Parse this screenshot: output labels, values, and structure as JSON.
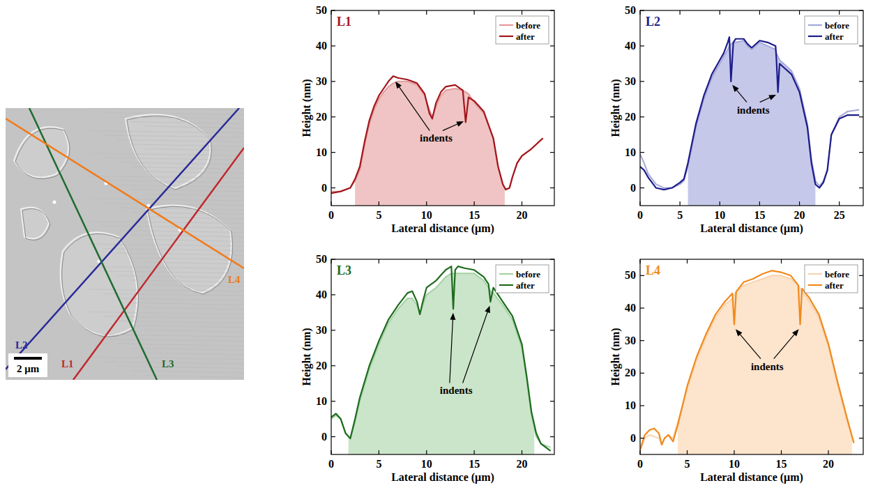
{
  "image": {
    "scale_bar": "2 μm",
    "lines": [
      {
        "label": "L1",
        "color": "#c0282d"
      },
      {
        "label": "L2",
        "color": "#2a2a9a"
      },
      {
        "label": "L3",
        "color": "#1f6b2e"
      },
      {
        "label": "L4",
        "color": "#f07a1a"
      }
    ]
  },
  "chart_data": [
    {
      "type": "line",
      "title": "L1",
      "x_label": "Lateral distance (μm)",
      "y_label": "Height (nm)",
      "xlim": [
        0,
        23.4
      ],
      "ylim": [
        -5,
        50
      ],
      "xticks": [
        0,
        5,
        10,
        15,
        20
      ],
      "yticks": [
        0,
        10,
        20,
        30,
        40,
        50
      ],
      "legend": "upper right",
      "shaded": [
        2.5,
        18.2
      ],
      "fill_color": "#f0c4c4",
      "x": [
        0,
        1,
        2,
        2.5,
        3,
        3.5,
        4,
        4.5,
        5,
        5.5,
        6,
        6.5,
        7,
        8,
        9,
        9.8,
        10.3,
        10.6,
        11,
        11.5,
        12,
        13,
        13.8,
        14.1,
        14.4,
        15,
        16,
        17,
        17.5,
        18,
        18.3,
        18.7,
        19,
        19.5,
        20,
        21,
        22.2
      ],
      "series": [
        {
          "name": "before",
          "color": "#e29a9a",
          "values": [
            -1,
            -1,
            0,
            2,
            5,
            12,
            18,
            22,
            25,
            27,
            28.5,
            29.5,
            30,
            30,
            29,
            26,
            22,
            20,
            23,
            26,
            27.5,
            28,
            27.5,
            27,
            26.5,
            24,
            21,
            14,
            6,
            1,
            -0.5,
            0,
            3,
            7,
            9,
            11,
            14
          ]
        },
        {
          "name": "after",
          "color": "#a3161c",
          "values": [
            -1.5,
            -1,
            0,
            2.5,
            6,
            13,
            19,
            23,
            26,
            28,
            30,
            31.5,
            31,
            30.5,
            29.5,
            26.5,
            21,
            19.5,
            24,
            27,
            28.5,
            29,
            27.5,
            18.5,
            25.5,
            24.5,
            21.5,
            14,
            6,
            1,
            -0.5,
            0,
            3,
            7,
            9,
            11,
            14
          ]
        }
      ],
      "annotations": [
        {
          "text": "indents",
          "x": 11,
          "y": 13,
          "arrows": [
            {
              "x": 6.6,
              "y": 30.5
            },
            {
              "x": 14.1,
              "y": 19
            }
          ]
        }
      ]
    },
    {
      "type": "line",
      "title": "L2",
      "x_label": "Lateral distance (μm)",
      "y_label": "Height (nm)",
      "xlim": [
        0,
        28
      ],
      "ylim": [
        -5,
        50
      ],
      "xticks": [
        0,
        5,
        10,
        15,
        20,
        25
      ],
      "yticks": [
        0,
        10,
        20,
        30,
        40,
        50
      ],
      "legend": "upper right",
      "shaded": [
        6,
        22
      ],
      "fill_color": "#c6c8ea",
      "x": [
        0,
        0.5,
        1,
        2,
        3,
        4,
        5,
        5.5,
        6,
        7,
        8,
        9,
        10,
        10.5,
        11,
        11.2,
        11.4,
        11.7,
        12,
        13,
        13.5,
        14,
        15,
        16,
        17,
        17.1,
        17.3,
        17.5,
        18,
        19,
        20,
        21,
        21.5,
        22,
        22.5,
        23,
        23.5,
        24,
        25,
        26,
        27.5
      ],
      "series": [
        {
          "name": "before",
          "color": "#a4a8d8",
          "values": [
            9.5,
            7,
            4,
            1,
            0,
            0,
            1,
            2,
            6,
            17,
            25,
            31,
            35,
            37,
            39,
            40,
            40.5,
            41,
            41,
            41.5,
            40,
            39,
            41,
            40,
            39,
            38,
            37,
            36,
            35,
            33,
            28,
            18,
            8,
            2,
            0.5,
            2,
            5,
            15,
            20,
            21.5,
            22
          ]
        },
        {
          "name": "after",
          "color": "#1c1c8a",
          "values": [
            6,
            5,
            3,
            0,
            -0.5,
            0,
            1.5,
            2.5,
            7,
            18,
            26,
            32,
            36,
            38,
            41,
            42.5,
            30,
            41,
            42,
            42,
            40.5,
            39.5,
            41.5,
            41,
            40,
            36.5,
            27,
            35,
            34,
            32,
            27,
            17,
            7,
            1,
            0,
            1.5,
            5,
            15,
            19.5,
            20.5,
            20.5
          ]
        }
      ],
      "annotations": [
        {
          "text": "indents",
          "x": 14.2,
          "y": 21,
          "arrows": [
            {
              "x": 11.4,
              "y": 29.5
            },
            {
              "x": 17.3,
              "y": 26.5
            }
          ]
        }
      ]
    },
    {
      "type": "line",
      "title": "L3",
      "x_label": "Lateral distance (μm)",
      "y_label": "Height (nm)",
      "xlim": [
        0,
        23.4
      ],
      "ylim": [
        -5,
        50
      ],
      "xticks": [
        0,
        5,
        10,
        15,
        20
      ],
      "yticks": [
        0,
        10,
        20,
        30,
        40,
        50
      ],
      "legend": "upper right",
      "shaded": [
        1.8,
        21.3
      ],
      "fill_color": "#cbe5cb",
      "x": [
        0,
        0.5,
        1,
        1.5,
        2,
        2.5,
        3,
        4,
        5,
        6,
        7,
        8,
        8.5,
        9,
        9.3,
        9.6,
        10,
        11,
        12,
        12.6,
        12.8,
        13,
        13.3,
        14,
        15,
        16,
        16.5,
        16.7,
        17,
        18,
        19,
        20,
        20.5,
        21,
        21.5,
        22,
        23
      ],
      "series": [
        {
          "name": "before",
          "color": "#a4d2a4",
          "values": [
            5,
            6,
            5,
            1,
            -0.5,
            4,
            10,
            19,
            26,
            32,
            36,
            39,
            39,
            37,
            34.5,
            37,
            40,
            42,
            45,
            46,
            46,
            46,
            46,
            46,
            46,
            44,
            42,
            41,
            40.5,
            37,
            33,
            25,
            16,
            6,
            0,
            -2,
            -3
          ]
        },
        {
          "name": "after",
          "color": "#1d6b1d",
          "values": [
            5.5,
            6.5,
            5,
            1,
            -0.5,
            5,
            11,
            20,
            27,
            33,
            37,
            40.5,
            41,
            38,
            34.5,
            38,
            42,
            44,
            47,
            48,
            36,
            47,
            48,
            47.5,
            47,
            45,
            43,
            38,
            42,
            38,
            34,
            26,
            17,
            7,
            1,
            -2,
            -4
          ]
        }
      ],
      "annotations": [
        {
          "text": "indents",
          "x": 13.1,
          "y": 12,
          "arrows": [
            {
              "x": 12.8,
              "y": 35.5
            },
            {
              "x": 16.7,
              "y": 37.5
            }
          ]
        }
      ]
    },
    {
      "type": "line",
      "title": "L4",
      "x_label": "Lateral distance (μm)",
      "y_label": "Height (nm)",
      "xlim": [
        0,
        23.7
      ],
      "ylim": [
        -5,
        55
      ],
      "xticks": [
        0,
        5,
        10,
        15,
        20
      ],
      "yticks": [
        0,
        10,
        20,
        30,
        40,
        50
      ],
      "legend": "upper right",
      "shaded": [
        4,
        22.5
      ],
      "fill_color": "#fde4cc",
      "x": [
        0,
        0.5,
        1,
        1.5,
        2,
        2.3,
        2.6,
        3,
        3.5,
        4,
        5,
        6,
        7,
        8,
        9,
        9.8,
        10,
        10.2,
        11,
        12,
        13,
        14,
        15,
        16,
        16.8,
        17,
        17.2,
        18,
        19,
        20,
        21,
        22,
        22.7
      ],
      "series": [
        {
          "name": "before",
          "color": "#f7d3b0",
          "values": [
            -4,
            0,
            1,
            0.5,
            0,
            -2,
            0,
            1,
            0,
            5,
            15,
            24,
            31,
            37,
            41,
            43,
            44,
            45,
            47,
            48,
            49,
            50,
            50,
            49,
            47,
            46,
            45,
            42,
            37,
            28,
            16,
            5,
            -1
          ]
        },
        {
          "name": "after",
          "color": "#f08a1c",
          "values": [
            -3.5,
            1,
            2.5,
            3,
            1.5,
            -2,
            0,
            1,
            -1,
            4,
            16,
            25,
            32,
            38,
            42,
            44.5,
            35,
            45,
            48,
            49,
            50.5,
            51.5,
            51,
            50,
            47,
            35,
            46,
            43,
            38,
            29,
            17,
            6,
            -1.5
          ]
        }
      ],
      "annotations": [
        {
          "text": "indents",
          "x": 13.5,
          "y": 21,
          "arrows": [
            {
              "x": 10,
              "y": 34
            },
            {
              "x": 17,
              "y": 34
            }
          ]
        }
      ]
    }
  ]
}
